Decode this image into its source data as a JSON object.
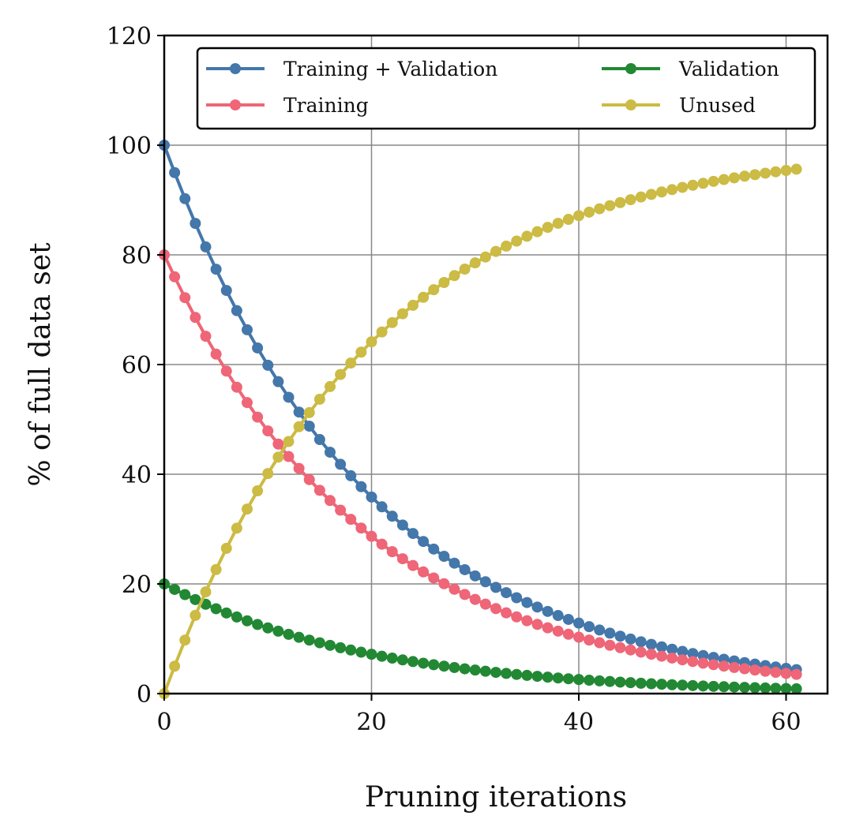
{
  "chart_data": {
    "type": "line",
    "title": "",
    "xlabel": "Pruning iterations",
    "ylabel": "% of full data set",
    "xlim": [
      0,
      64
    ],
    "ylim": [
      0,
      120
    ],
    "xticks": [
      "0",
      "20",
      "40",
      "60"
    ],
    "yticks": [
      "0",
      "20",
      "40",
      "60",
      "80",
      "100",
      "120"
    ],
    "grid": true,
    "legend_position": "top-right",
    "legend_columns": 2,
    "x_start": 0,
    "x_end": 61,
    "decay_per_iteration": 0.95,
    "series": [
      {
        "name": "Training + Validation",
        "color": "#4477aa",
        "start_value": 100,
        "trend": "decay"
      },
      {
        "name": "Training",
        "color": "#ee6677",
        "start_value": 80,
        "trend": "decay"
      },
      {
        "name": "Validation",
        "color": "#228833",
        "start_value": 20,
        "trend": "decay"
      },
      {
        "name": "Unused",
        "color": "#ccbb44",
        "start_value": 0,
        "trend": "complement_of_100"
      }
    ]
  }
}
